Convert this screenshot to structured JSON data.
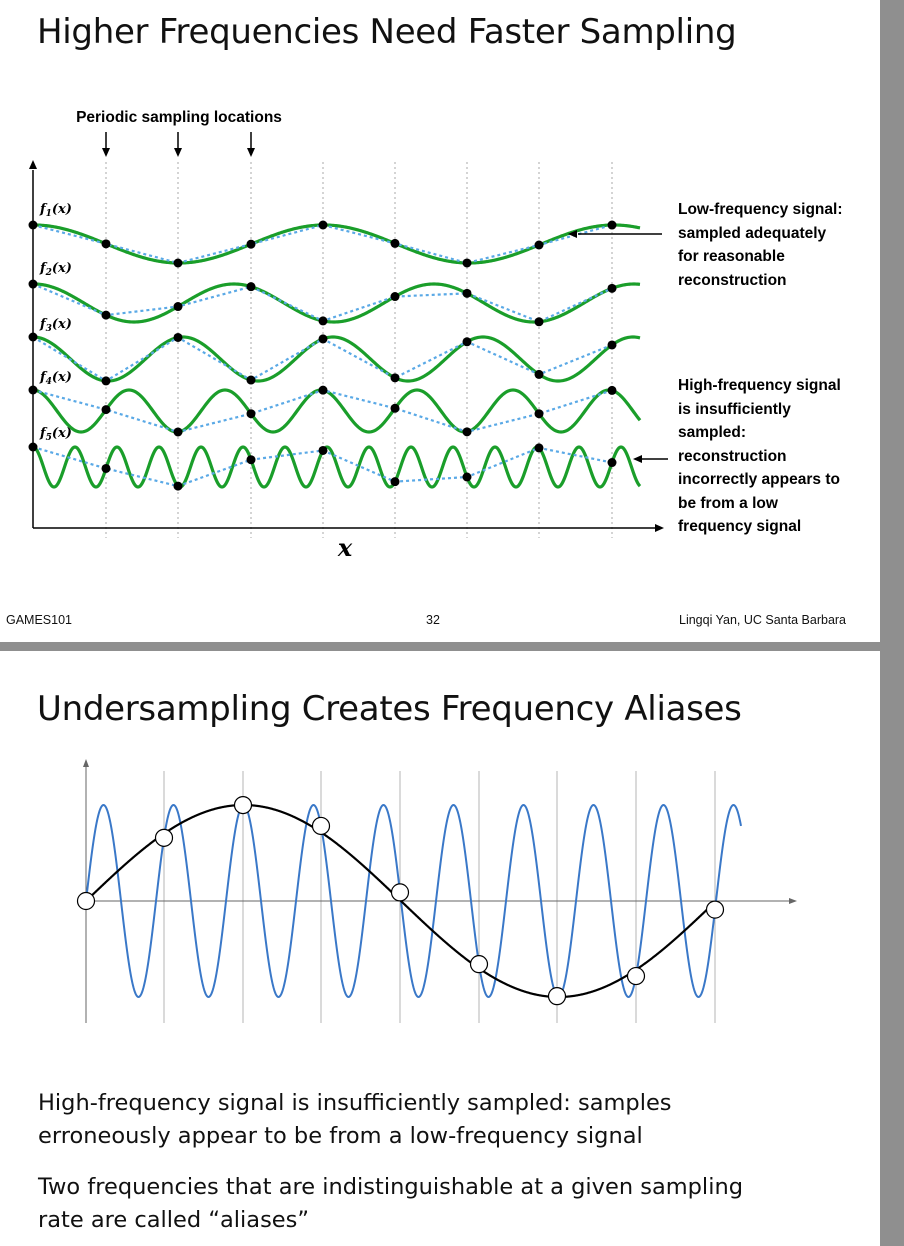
{
  "slide1": {
    "title": "Higher Frequencies Need Faster Sampling",
    "sampling_label": "Periodic sampling locations",
    "axis_x_label": "x",
    "function_labels": [
      {
        "name": "f",
        "sub": "1",
        "suffix": "(x)"
      },
      {
        "name": "f",
        "sub": "2",
        "suffix": "(x)"
      },
      {
        "name": "f",
        "sub": "3",
        "suffix": "(x)"
      },
      {
        "name": "f",
        "sub": "4",
        "suffix": "(x)"
      },
      {
        "name": "f",
        "sub": "5",
        "suffix": "(x)"
      }
    ],
    "note_low": "Low-frequency signal:\nsampled adequately\nfor reasonable\nreconstruction",
    "note_high": "High-frequency signal\nis insufficiently\nsampled:\nreconstruction\nincorrectly appears to\nbe from a low\nfrequency signal",
    "footer_left": "GAMES101",
    "footer_center": "32",
    "footer_right": "Lingqi Yan, UC Santa Barbara",
    "colors": {
      "signal": "#1a9e2a",
      "reconstruction": "#5aa9e6",
      "sample": "#000000"
    }
  },
  "slide2": {
    "title": "Undersampling Creates Frequency Aliases",
    "body_1": "High-frequency signal is insufficiently sampled: samples\nerroneously appear to be from a low-frequency signal",
    "body_2": "Two frequencies that are indistinguishable at a given sampling\nrate are called “aliases”",
    "colors": {
      "high_freq": "#3a78c8",
      "alias": "#000000",
      "grid": "#b5b5b5"
    }
  }
}
